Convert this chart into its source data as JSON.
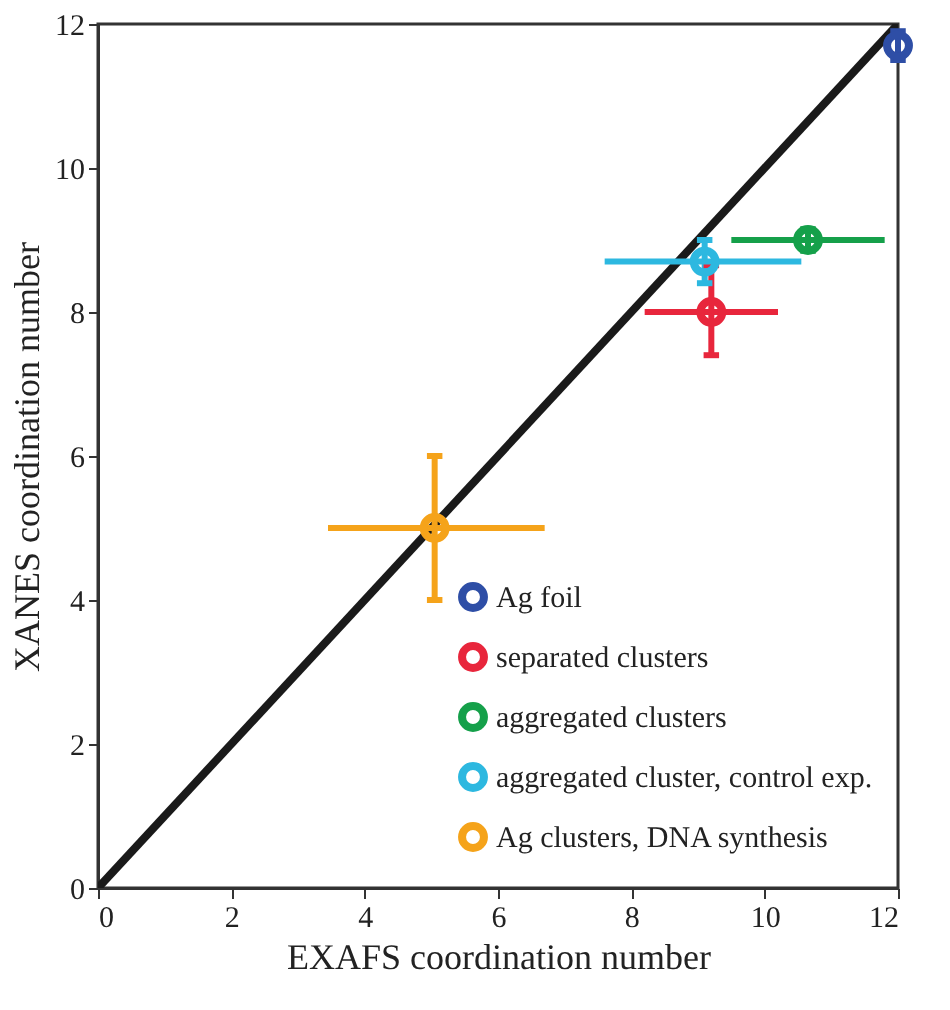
{
  "chart_data": {
    "type": "scatter",
    "xlabel": "EXAFS coordination number",
    "ylabel": "XANES coordination number",
    "xlim": [
      0,
      12
    ],
    "ylim": [
      0,
      12
    ],
    "xticks": [
      0,
      2,
      4,
      6,
      8,
      10,
      12
    ],
    "yticks": [
      0,
      2,
      4,
      6,
      8,
      10,
      12
    ],
    "grid": false,
    "legend": "bottom right",
    "marker": "circle",
    "series": [
      {
        "type": "line",
        "color": "#1a1a1a",
        "x": [
          0,
          12
        ],
        "values": [
          0,
          12
        ],
        "line_style": "solid",
        "marker": "none"
      },
      {
        "name": "Ag foil",
        "color": "#2e4ea6",
        "x": [
          12.0
        ],
        "values": [
          11.7
        ],
        "errors": [
          0.2
        ]
      },
      {
        "name": "separated clusters",
        "color": "#e8263c",
        "x": [
          9.2
        ],
        "values": [
          8.0
        ],
        "errors": [
          [
            7.4,
            8.65
          ]
        ],
        "xerrors": [
          [
            8.2,
            10.2
          ]
        ]
      },
      {
        "name": "aggregated clusters",
        "color": "#15a04a",
        "x": [
          10.65
        ],
        "values": [
          9.0
        ],
        "errors": [
          0.15
        ],
        "xerrors": [
          [
            9.5,
            11.8
          ]
        ]
      },
      {
        "name": "aggregated cluster, control exp.",
        "color": "#2db8e0",
        "x": [
          9.1
        ],
        "values": [
          8.7
        ],
        "errors": [
          [
            8.4,
            9.0
          ]
        ],
        "xerrors": [
          [
            7.6,
            10.55
          ]
        ]
      },
      {
        "name": "Ag clusters, DNA synthesis",
        "color": "#f5a31a",
        "x": [
          5.05
        ],
        "values": [
          5.0
        ],
        "errors": [
          [
            4.0,
            6.0
          ]
        ],
        "xerrors": [
          [
            3.45,
            6.7
          ]
        ]
      }
    ]
  }
}
